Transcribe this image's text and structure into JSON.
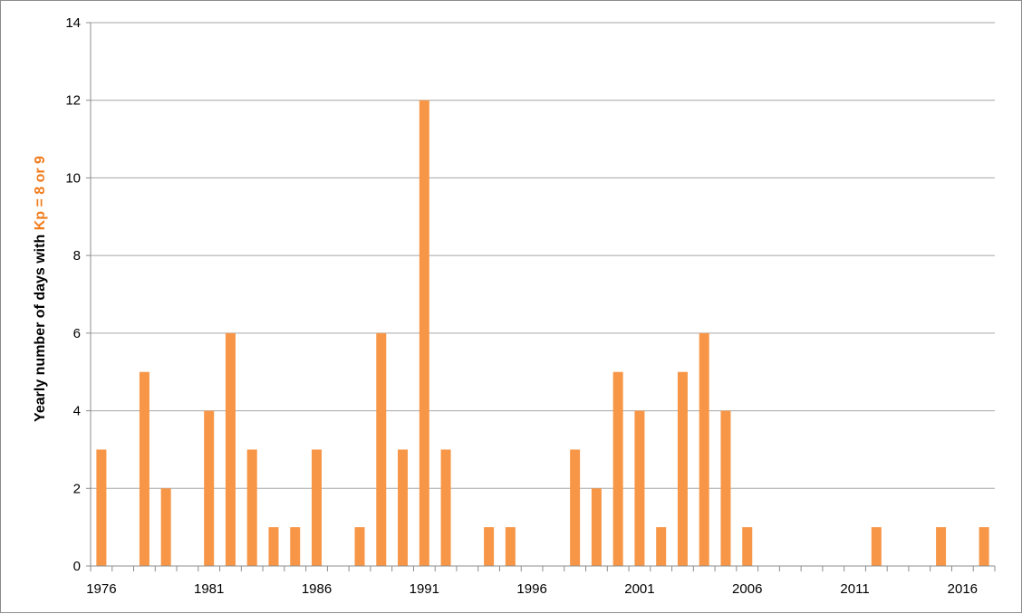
{
  "chart_data": {
    "type": "bar",
    "years": [
      1976,
      1977,
      1978,
      1979,
      1980,
      1981,
      1982,
      1983,
      1984,
      1985,
      1986,
      1987,
      1988,
      1989,
      1990,
      1991,
      1992,
      1993,
      1994,
      1995,
      1996,
      1997,
      1998,
      1999,
      2000,
      2001,
      2002,
      2003,
      2004,
      2005,
      2006,
      2007,
      2008,
      2009,
      2010,
      2011,
      2012,
      2013,
      2014,
      2015,
      2016,
      2017
    ],
    "values": [
      3,
      0,
      5,
      2,
      0,
      4,
      6,
      3,
      1,
      1,
      3,
      0,
      1,
      6,
      3,
      12,
      3,
      0,
      1,
      1,
      0,
      0,
      3,
      2,
      5,
      4,
      1,
      5,
      6,
      4,
      1,
      0,
      0,
      0,
      0,
      0,
      1,
      0,
      0,
      1,
      0,
      1
    ],
    "x_tick_labels": [
      "1976",
      "1981",
      "1986",
      "1991",
      "1996",
      "2001",
      "2006",
      "2011",
      "2016"
    ],
    "y_tick_labels": [
      "0",
      "2",
      "4",
      "6",
      "8",
      "10",
      "12",
      "14"
    ],
    "ylim": [
      0,
      14
    ],
    "ylabel_prefix": "Yearly number of days with ",
    "ylabel_highlight": "Kp = 8 or 9",
    "bar_color": "#f79646",
    "highlight_color": "#f07c1c",
    "grid": true
  }
}
